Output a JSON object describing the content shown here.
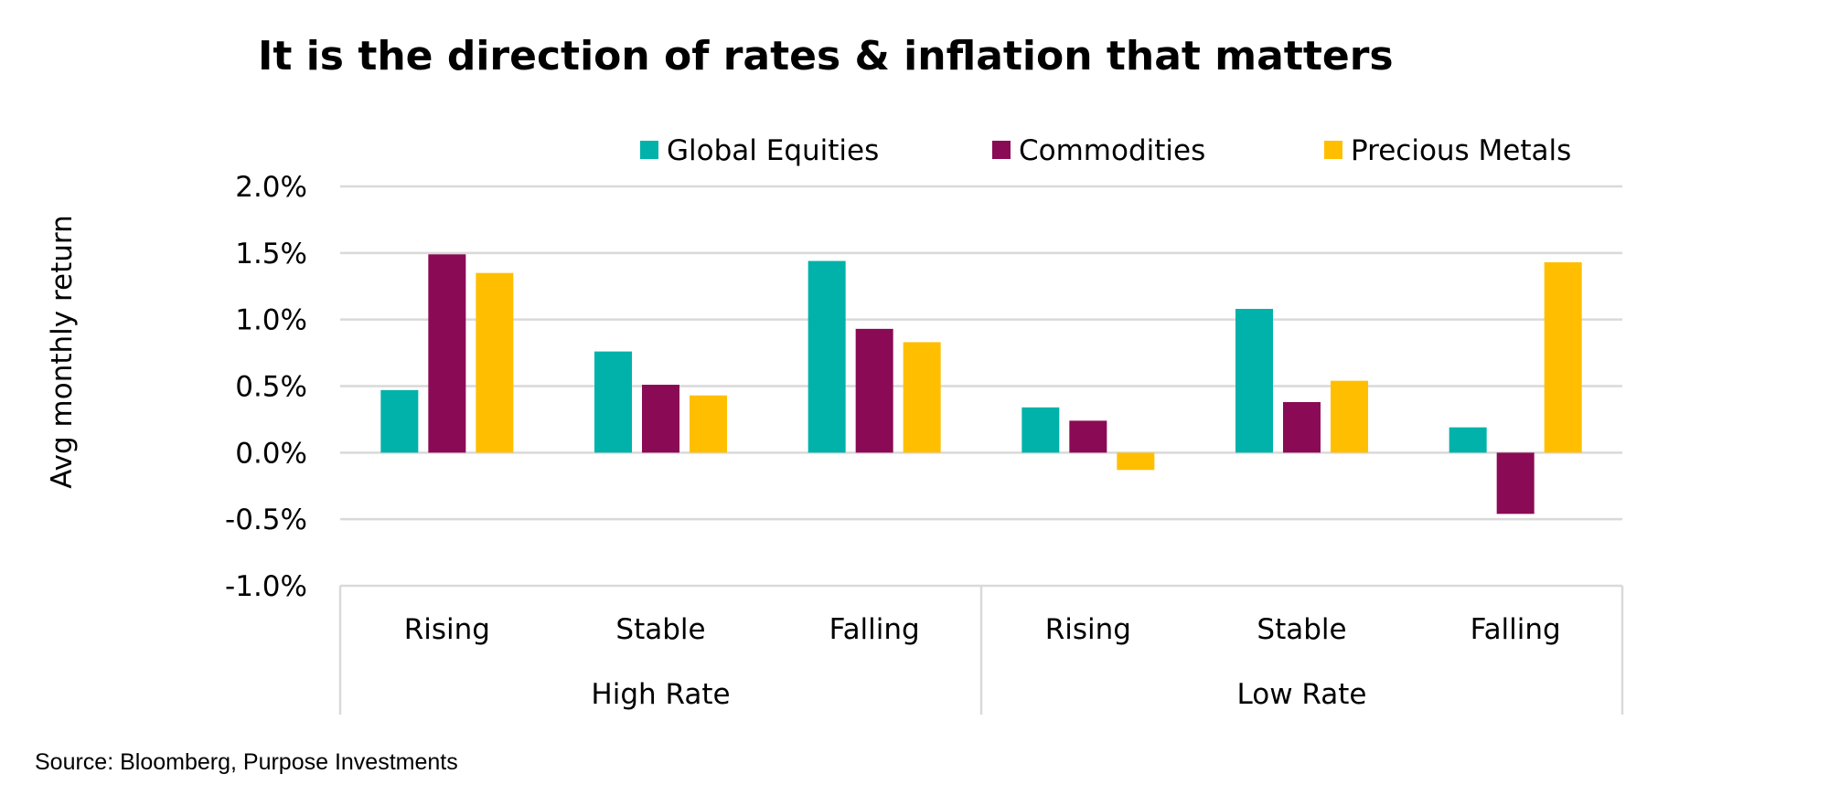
{
  "chart_data": {
    "type": "bar",
    "title": "It is the direction of rates & inflation that matters",
    "ylabel": "Avg monthly return",
    "xlabel": "",
    "ylim": [
      -1.0,
      2.0
    ],
    "yticks": [
      "2.0%",
      "1.5%",
      "1.0%",
      "0.5%",
      "0.0%",
      "-0.5%",
      "-1.0%"
    ],
    "grid": true,
    "legend": "top",
    "groups": [
      {
        "label": "High Rate",
        "categories": [
          "Rising",
          "Stable",
          "Falling"
        ]
      },
      {
        "label": "Low Rate",
        "categories": [
          "Rising",
          "Stable",
          "Falling"
        ]
      }
    ],
    "series": [
      {
        "name": "Global Equities",
        "color": "#00B2A9",
        "values": [
          0.47,
          0.76,
          1.44,
          0.34,
          1.08,
          0.19
        ]
      },
      {
        "name": "Commodities",
        "color": "#8A0A55",
        "values": [
          1.49,
          0.51,
          0.93,
          0.24,
          0.38,
          -0.46
        ]
      },
      {
        "name": "Precious Metals",
        "color": "#FFBF00",
        "values": [
          1.35,
          0.43,
          0.83,
          -0.13,
          0.54,
          1.43
        ]
      }
    ],
    "source": "Source: Bloomberg, Purpose Investments"
  }
}
